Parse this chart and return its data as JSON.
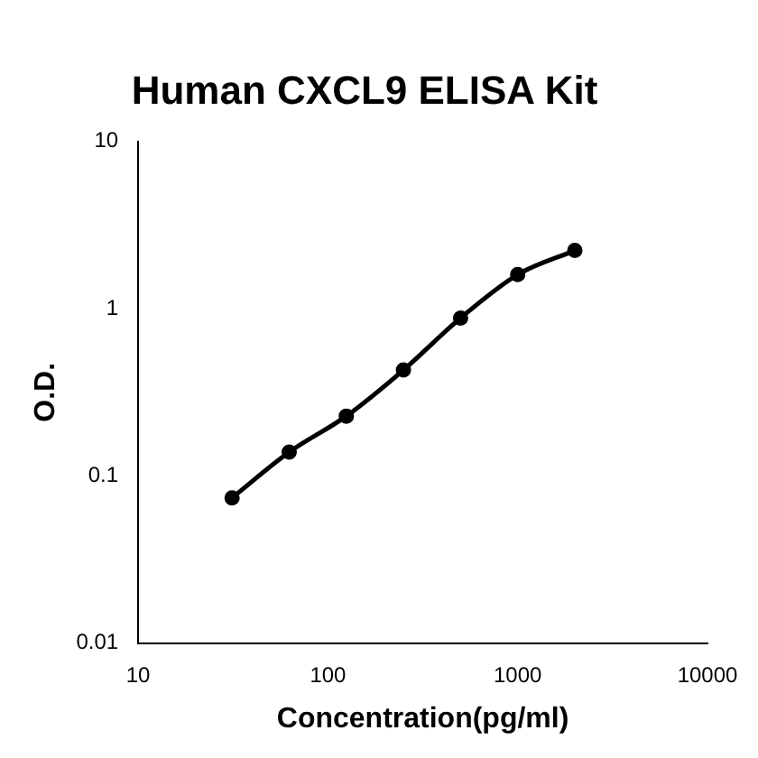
{
  "chart_data": {
    "type": "line",
    "title": "Human CXCL9 ELISA Kit",
    "xlabel": "Concentration(pg/ml)",
    "ylabel": "O.D.",
    "x": [
      31.25,
      62.5,
      125,
      250,
      500,
      1000,
      2000
    ],
    "series": [
      {
        "color": "#000000",
        "values": [
          0.074,
          0.139,
          0.228,
          0.43,
          0.88,
          1.6,
          2.23
        ]
      }
    ],
    "log": "xy",
    "xlim": [
      10,
      10000
    ],
    "xticks": [
      10,
      100,
      1000,
      10000
    ],
    "ylim": [
      0.01,
      10
    ],
    "yticks": [
      0.01,
      0.1,
      1,
      10
    ],
    "grid": false,
    "legend": false,
    "marker": "circle",
    "line_style": "solid"
  }
}
